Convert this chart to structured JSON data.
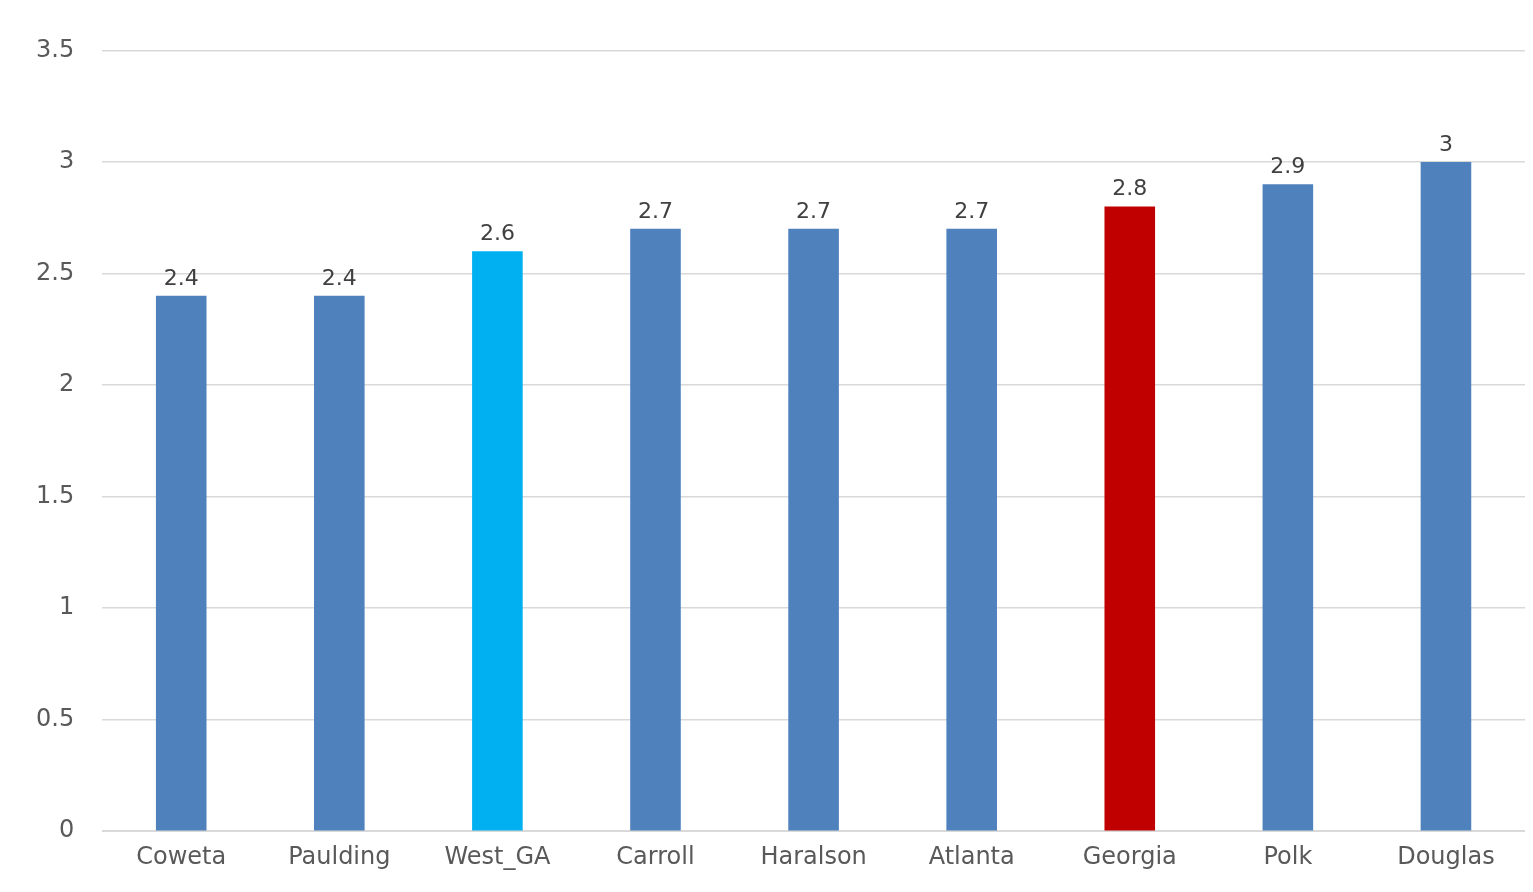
{
  "chart_data": {
    "type": "bar",
    "categories": [
      "Coweta",
      "Paulding",
      "West_GA",
      "Carroll",
      "Haralson",
      "Atlanta",
      "Georgia",
      "Polk",
      "Douglas"
    ],
    "values": [
      2.4,
      2.4,
      2.6,
      2.7,
      2.7,
      2.7,
      2.8,
      2.9,
      3
    ],
    "colors": [
      "#4f81bd",
      "#4f81bd",
      "#00b0f0",
      "#4f81bd",
      "#4f81bd",
      "#4f81bd",
      "#c00000",
      "#4f81bd",
      "#4f81bd"
    ],
    "ylim": [
      0,
      3.5
    ],
    "yticks": [
      0,
      0.5,
      1,
      1.5,
      2,
      2.5,
      3,
      3.5
    ],
    "grid": "y",
    "data_labels": true,
    "legend": false
  }
}
